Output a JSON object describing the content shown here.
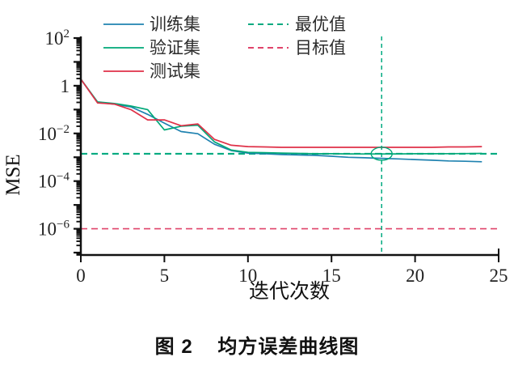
{
  "figure": {
    "caption": "图 2    均方误差曲线图"
  },
  "chart_data": {
    "type": "line",
    "title": "",
    "xlabel": "迭代次数",
    "ylabel": "MSE",
    "x_axis": {
      "min": 0,
      "max": 25,
      "ticks": [
        0,
        5,
        10,
        15,
        20,
        25
      ]
    },
    "y_axis": {
      "scale": "log",
      "top_exponent": 2,
      "bottom_exponent": -7.1,
      "labeled_tick_exponents": [
        2,
        0,
        -2,
        -4,
        -6
      ],
      "label_base": "10",
      "label_for_exponent_zero": "1"
    },
    "grid": "off",
    "legend_position": "top",
    "x": [
      0,
      1,
      2,
      3,
      4,
      5,
      6,
      7,
      8,
      9,
      10,
      11,
      12,
      13,
      14,
      15,
      16,
      17,
      18,
      19,
      20,
      21,
      22,
      23,
      24
    ],
    "series": [
      {
        "name": "训练集",
        "color": "#1f82b0",
        "style": "solid",
        "values": [
          1.9,
          0.2,
          0.17,
          0.13,
          0.063,
          0.027,
          0.012,
          0.0097,
          0.0035,
          0.0019,
          0.0015,
          0.0014,
          0.0013,
          0.00125,
          0.0012,
          0.0011,
          0.001,
          0.00095,
          0.0009,
          0.00085,
          0.0008,
          0.00075,
          0.0007,
          0.00068,
          0.00065
        ]
      },
      {
        "name": "验证集",
        "color": "#00a878",
        "style": "solid",
        "values": [
          1.9,
          0.21,
          0.18,
          0.14,
          0.1,
          0.014,
          0.02,
          0.022,
          0.0044,
          0.002,
          0.0016,
          0.00155,
          0.0015,
          0.00145,
          0.0014,
          0.0014,
          0.00138,
          0.00137,
          0.00137,
          0.00138,
          0.0014,
          0.0014,
          0.00142,
          0.00143,
          0.00145
        ]
      },
      {
        "name": "测试集",
        "color": "#df3148",
        "style": "solid",
        "values": [
          1.9,
          0.19,
          0.17,
          0.1,
          0.037,
          0.037,
          0.021,
          0.025,
          0.0056,
          0.0032,
          0.0028,
          0.0027,
          0.0026,
          0.0026,
          0.0026,
          0.0026,
          0.0026,
          0.0026,
          0.0026,
          0.0026,
          0.0026,
          0.0026,
          0.0027,
          0.0027,
          0.0028
        ]
      }
    ],
    "reference_lines": [
      {
        "name": "最优值",
        "orientation": "horizontal",
        "value": 0.0014,
        "color": "#00aa80",
        "style": "dashed"
      },
      {
        "name": "目标值",
        "orientation": "horizontal",
        "value": 1e-06,
        "color": "#e0436a",
        "style": "dashed"
      }
    ],
    "best_epoch_marker": {
      "x": 18,
      "value": 0.0014,
      "vline_color": "#00aa80",
      "circle_color": "#00a878"
    }
  }
}
